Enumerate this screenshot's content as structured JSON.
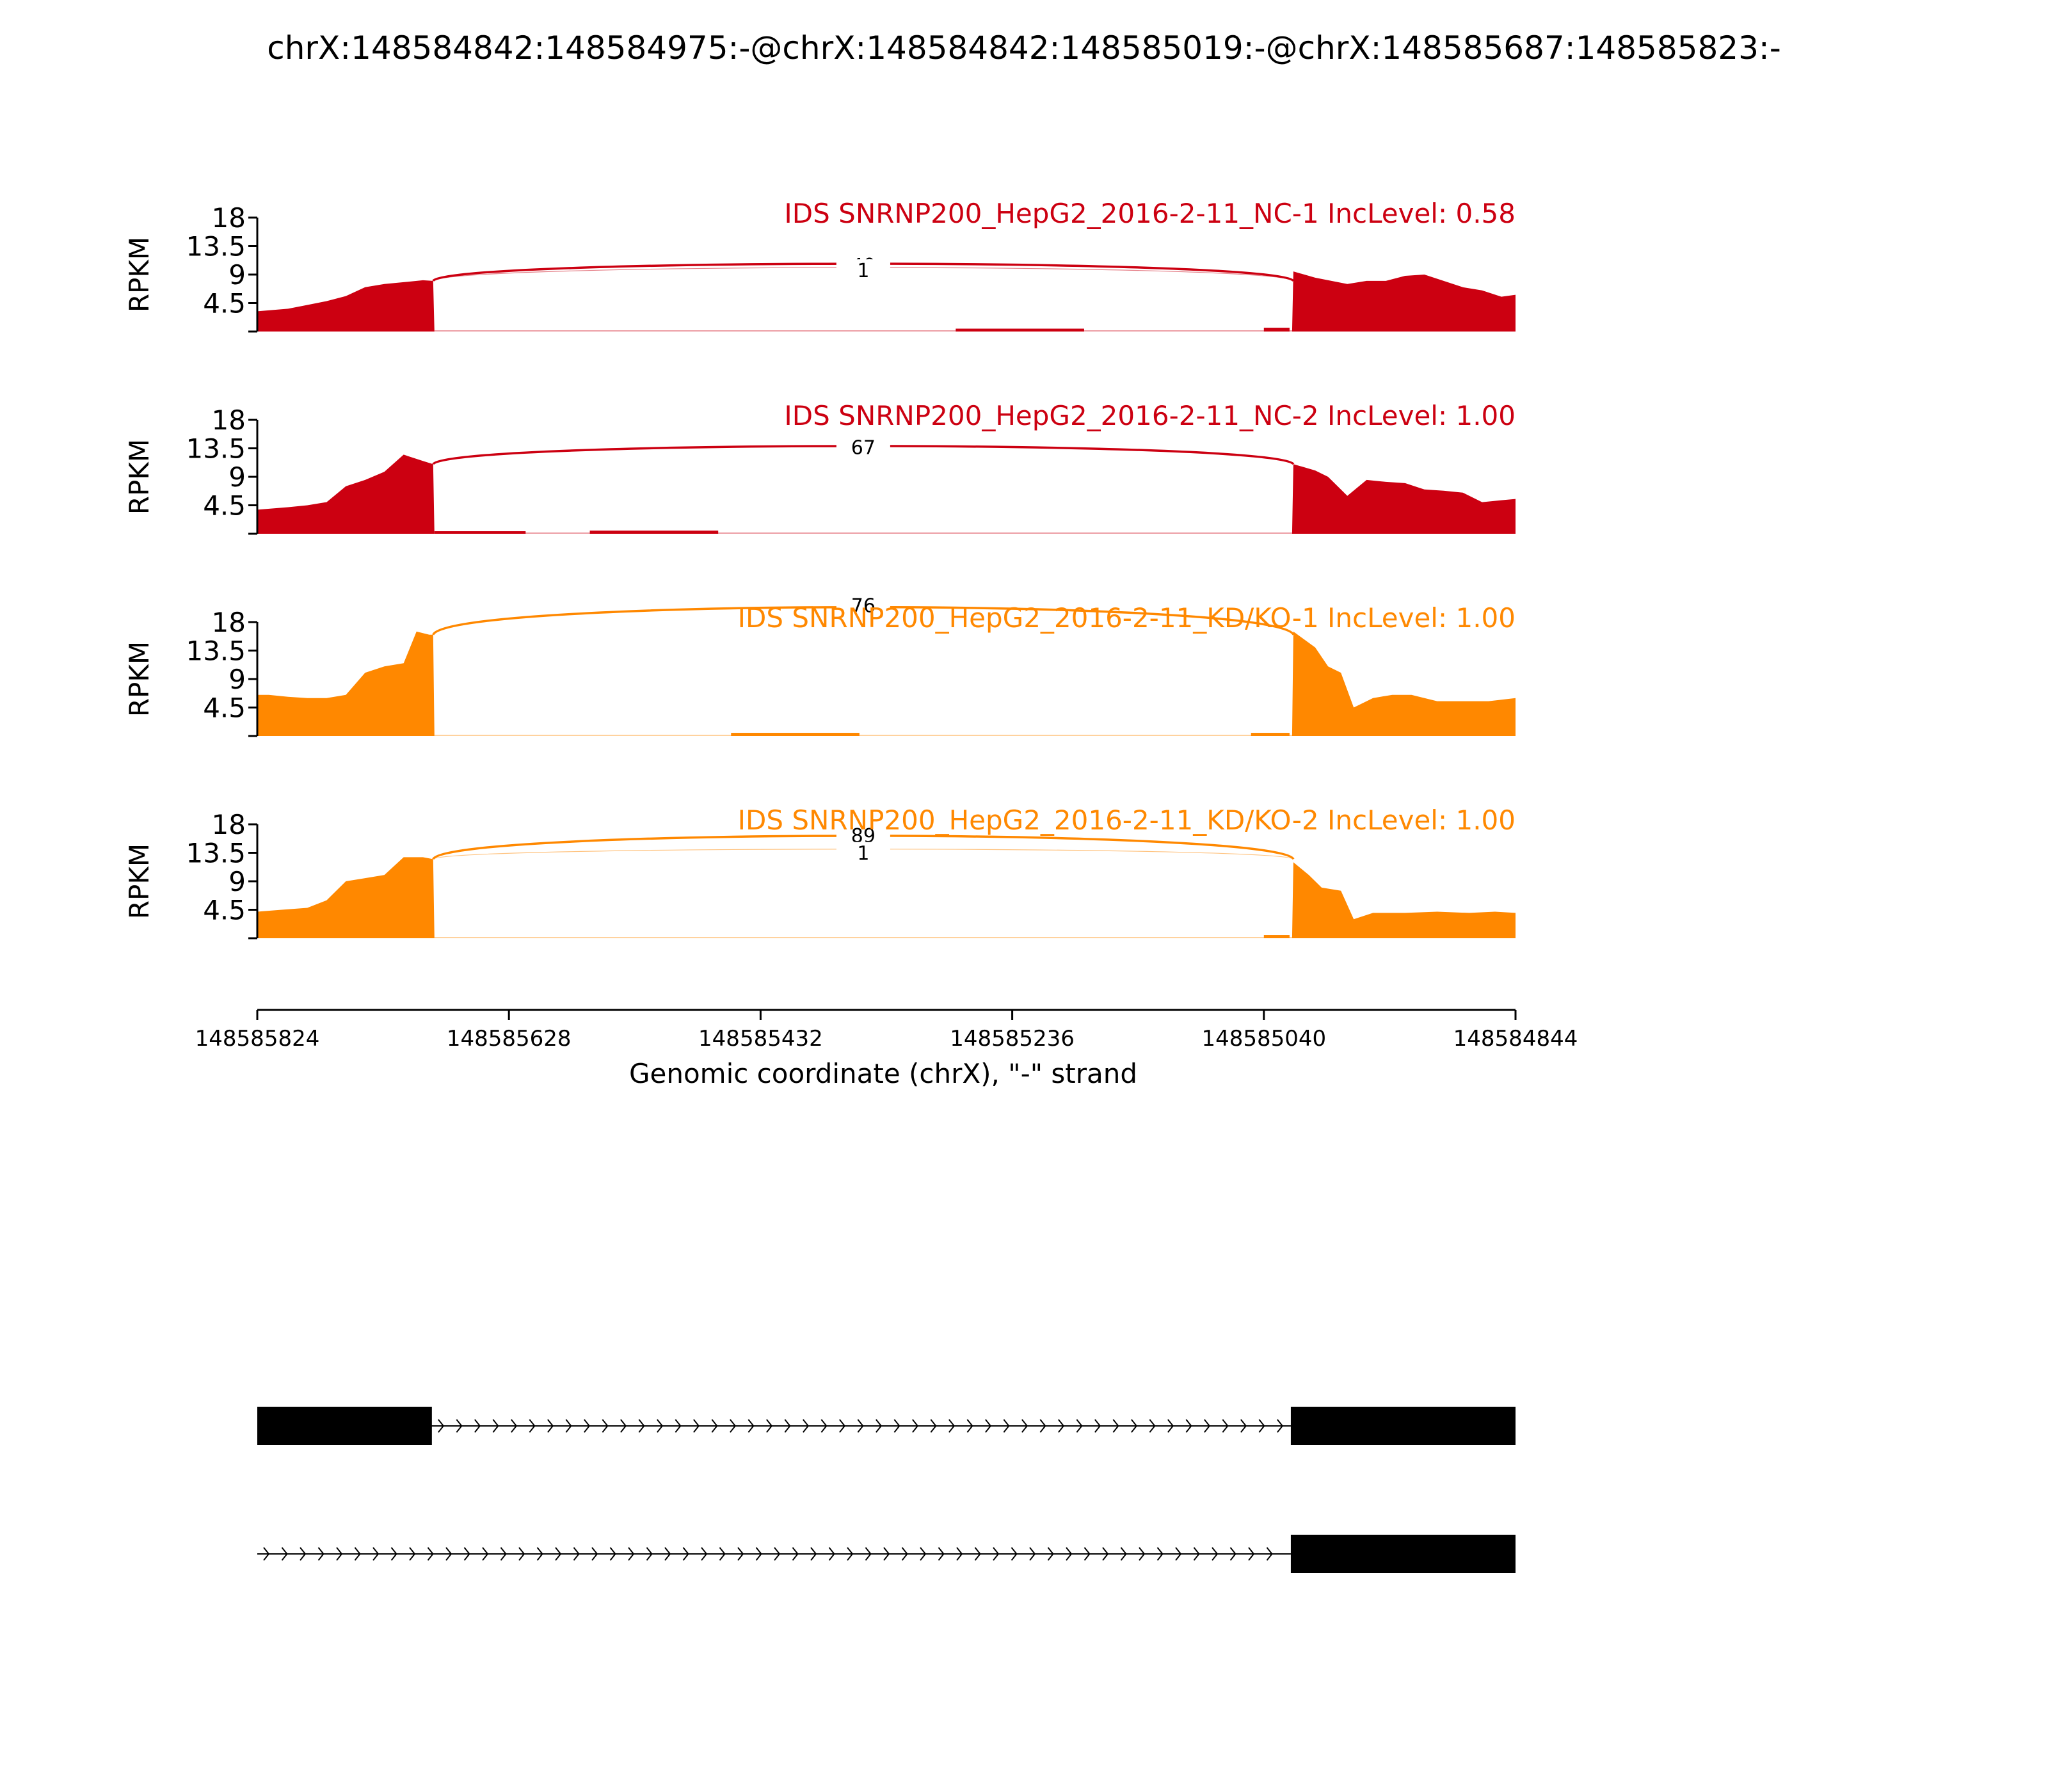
{
  "chart_data": {
    "type": "area",
    "title": "chrX:148584842:148584975:-@chrX:148584842:148585019:-@chrX:148585687:148585823:-",
    "xlabel": "Genomic coordinate (chrX), \"-\" strand",
    "ylabel": "RPKM",
    "x_range": [
      148585824,
      148584844
    ],
    "x_ticks": [
      "148585824",
      "148585628",
      "148585432",
      "148585236",
      "148585040",
      "148584844"
    ],
    "y_range": [
      0,
      18
    ],
    "y_ticks": [
      "4.5",
      "9",
      "13.5",
      "18"
    ],
    "panels": [
      {
        "label": "IDS SNRNP200_HepG2_2016-2-11_NC-1 IncLevel: 0.58",
        "color": "#cc0011",
        "junctions": [
          {
            "label": "40",
            "apex": 10.8
          },
          {
            "label": "1",
            "apex": 10.4
          }
        ],
        "coverage": [
          [
            148585824,
            3.2
          ],
          [
            148585800,
            3.6
          ],
          [
            148585785,
            4.2
          ],
          [
            148585770,
            4.8
          ],
          [
            148585755,
            5.6
          ],
          [
            148585740,
            7.0
          ],
          [
            148585725,
            7.5
          ],
          [
            148585710,
            7.8
          ],
          [
            148585695,
            8.1
          ],
          [
            148585687,
            8.0
          ],
          [
            148585686,
            0
          ],
          [
            148585018,
            0
          ],
          [
            148585017,
            9.5
          ],
          [
            148585000,
            8.5
          ],
          [
            148584975,
            7.5
          ],
          [
            148584960,
            8.0
          ],
          [
            148584945,
            8.0
          ],
          [
            148584930,
            8.8
          ],
          [
            148584915,
            9.0
          ],
          [
            148584900,
            8.0
          ],
          [
            148584885,
            7.0
          ],
          [
            148584870,
            6.5
          ],
          [
            148584855,
            5.5
          ],
          [
            148584844,
            5.8
          ]
        ],
        "low_segments": [
          [
            148585280,
            148585180,
            0.25
          ],
          [
            148585040,
            148585020,
            0.4
          ]
        ]
      },
      {
        "label": "IDS SNRNP200_HepG2_2016-2-11_NC-2 IncLevel: 1.00",
        "color": "#cc0011",
        "junctions": [
          {
            "label": "67",
            "apex": 14.0
          }
        ],
        "coverage": [
          [
            148585824,
            3.8
          ],
          [
            148585800,
            4.2
          ],
          [
            148585785,
            4.5
          ],
          [
            148585770,
            5.0
          ],
          [
            148585755,
            7.5
          ],
          [
            148585740,
            8.5
          ],
          [
            148585725,
            9.8
          ],
          [
            148585710,
            12.5
          ],
          [
            148585695,
            11.5
          ],
          [
            148585687,
            11.0
          ],
          [
            148585686,
            0
          ],
          [
            148585018,
            0
          ],
          [
            148585017,
            11.0
          ],
          [
            148585000,
            10.0
          ],
          [
            148584990,
            9.0
          ],
          [
            148584975,
            6.0
          ],
          [
            148584960,
            8.5
          ],
          [
            148584945,
            8.2
          ],
          [
            148584930,
            8.0
          ],
          [
            148584915,
            7.0
          ],
          [
            148584900,
            6.8
          ],
          [
            148584885,
            6.5
          ],
          [
            148584870,
            5.0
          ],
          [
            148584855,
            5.3
          ],
          [
            148584844,
            5.5
          ]
        ],
        "low_segments": [
          [
            148585686,
            148585615,
            0.2
          ],
          [
            148585565,
            148585465,
            0.3
          ]
        ]
      },
      {
        "label": "IDS SNRNP200_HepG2_2016-2-11_KD/KO-1 IncLevel: 1.00",
        "color": "#ff8800",
        "junctions": [
          {
            "label": "76",
            "apex": 21.0
          }
        ],
        "coverage": [
          [
            148585824,
            6.5
          ],
          [
            148585815,
            6.5
          ],
          [
            148585800,
            6.2
          ],
          [
            148585785,
            6.0
          ],
          [
            148585770,
            6.0
          ],
          [
            148585755,
            6.5
          ],
          [
            148585740,
            10.0
          ],
          [
            148585725,
            11.0
          ],
          [
            148585710,
            11.5
          ],
          [
            148585700,
            16.5
          ],
          [
            148585690,
            16.0
          ],
          [
            148585687,
            16.0
          ],
          [
            148585686,
            0
          ],
          [
            148585018,
            0
          ],
          [
            148585017,
            16.5
          ],
          [
            148585000,
            14.0
          ],
          [
            148584990,
            11.0
          ],
          [
            148584980,
            10.0
          ],
          [
            148584970,
            4.5
          ],
          [
            148584955,
            6.0
          ],
          [
            148584940,
            6.5
          ],
          [
            148584925,
            6.5
          ],
          [
            148584905,
            5.5
          ],
          [
            148584885,
            5.5
          ],
          [
            148584865,
            5.5
          ],
          [
            148584844,
            6.0
          ]
        ],
        "low_segments": [
          [
            148585455,
            148585355,
            0.3
          ],
          [
            148585050,
            148585020,
            0.3
          ]
        ]
      },
      {
        "label": "IDS SNRNP200_HepG2_2016-2-11_KD/KO-2 IncLevel: 1.00",
        "color": "#ff8800",
        "junctions": [
          {
            "label": "89",
            "apex": 16.6
          },
          {
            "label": "1",
            "apex": 14.2
          }
        ],
        "coverage": [
          [
            148585824,
            4.2
          ],
          [
            148585805,
            4.5
          ],
          [
            148585785,
            4.8
          ],
          [
            148585770,
            6.0
          ],
          [
            148585755,
            9.0
          ],
          [
            148585740,
            9.5
          ],
          [
            148585725,
            10.0
          ],
          [
            148585710,
            12.8
          ],
          [
            148585695,
            12.8
          ],
          [
            148585687,
            12.5
          ],
          [
            148585686,
            0
          ],
          [
            148585018,
            0
          ],
          [
            148585017,
            12.0
          ],
          [
            148585005,
            10.0
          ],
          [
            148584995,
            8.0
          ],
          [
            148584980,
            7.5
          ],
          [
            148584970,
            3.0
          ],
          [
            148584955,
            4.0
          ],
          [
            148584930,
            4.0
          ],
          [
            148584905,
            4.2
          ],
          [
            148584880,
            4.0
          ],
          [
            148584860,
            4.2
          ],
          [
            148584844,
            4.0
          ]
        ],
        "low_segments": [
          [
            148585040,
            148585020,
            0.3
          ]
        ]
      }
    ],
    "transcripts": [
      {
        "exons": [
          [
            148585824,
            148585688
          ],
          [
            148585019,
            148584844
          ]
        ]
      },
      {
        "exons": [
          [
            148585019,
            148584844
          ]
        ]
      }
    ]
  }
}
